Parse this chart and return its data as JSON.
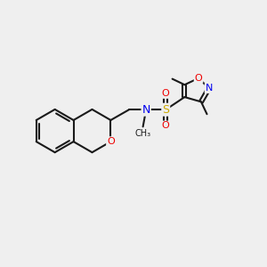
{
  "background_color": "#efefef",
  "bond_color": "#1a1a1a",
  "atom_colors": {
    "N": "#0000ee",
    "O": "#ee0000",
    "S": "#ccaa00",
    "C": "#1a1a1a"
  },
  "figsize": [
    3.0,
    3.0
  ],
  "dpi": 100
}
